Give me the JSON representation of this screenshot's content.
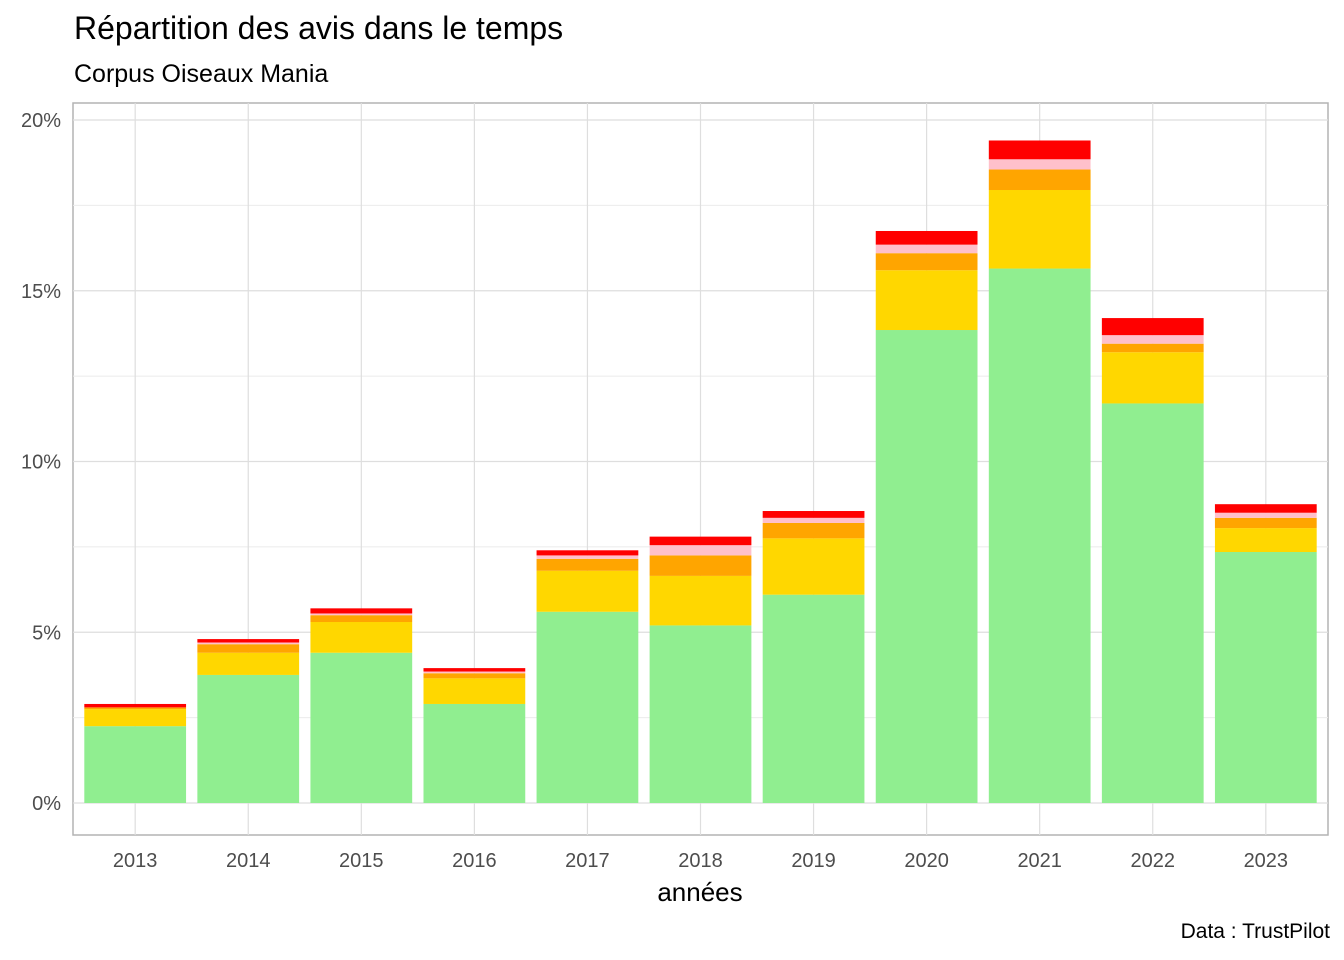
{
  "chart_data": {
    "type": "bar",
    "stacked": true,
    "title": "Répartition des avis dans le temps",
    "subtitle": "Corpus Oiseaux Mania",
    "caption": "Data : TrustPilot",
    "xlabel": "années",
    "ylabel": "",
    "ylim": [
      0,
      20.5
    ],
    "yticks": [
      0,
      5,
      10,
      15,
      20
    ],
    "ytick_labels": [
      "0%",
      "5%",
      "10%",
      "15%",
      "20%"
    ],
    "grid": true,
    "legend": "none",
    "categories": [
      "2013",
      "2014",
      "2015",
      "2016",
      "2017",
      "2018",
      "2019",
      "2020",
      "2021",
      "2022",
      "2023"
    ],
    "series": [
      {
        "color": "#90EE90",
        "values": [
          2.25,
          3.75,
          4.4,
          2.9,
          5.6,
          5.2,
          6.1,
          13.85,
          15.65,
          11.7,
          7.35
        ]
      },
      {
        "color": "#FFD700",
        "values": [
          0.5,
          0.65,
          0.9,
          0.75,
          1.2,
          1.45,
          1.65,
          1.75,
          2.3,
          1.5,
          0.7
        ]
      },
      {
        "color": "#FFA500",
        "values": [
          0.05,
          0.25,
          0.2,
          0.15,
          0.35,
          0.6,
          0.45,
          0.5,
          0.6,
          0.25,
          0.3
        ]
      },
      {
        "color": "#FFC0CB",
        "values": [
          0.0,
          0.05,
          0.05,
          0.05,
          0.1,
          0.3,
          0.15,
          0.25,
          0.3,
          0.25,
          0.15
        ]
      },
      {
        "color": "#FF0000",
        "values": [
          0.1,
          0.1,
          0.15,
          0.1,
          0.15,
          0.25,
          0.2,
          0.4,
          0.55,
          0.5,
          0.25
        ]
      }
    ]
  }
}
